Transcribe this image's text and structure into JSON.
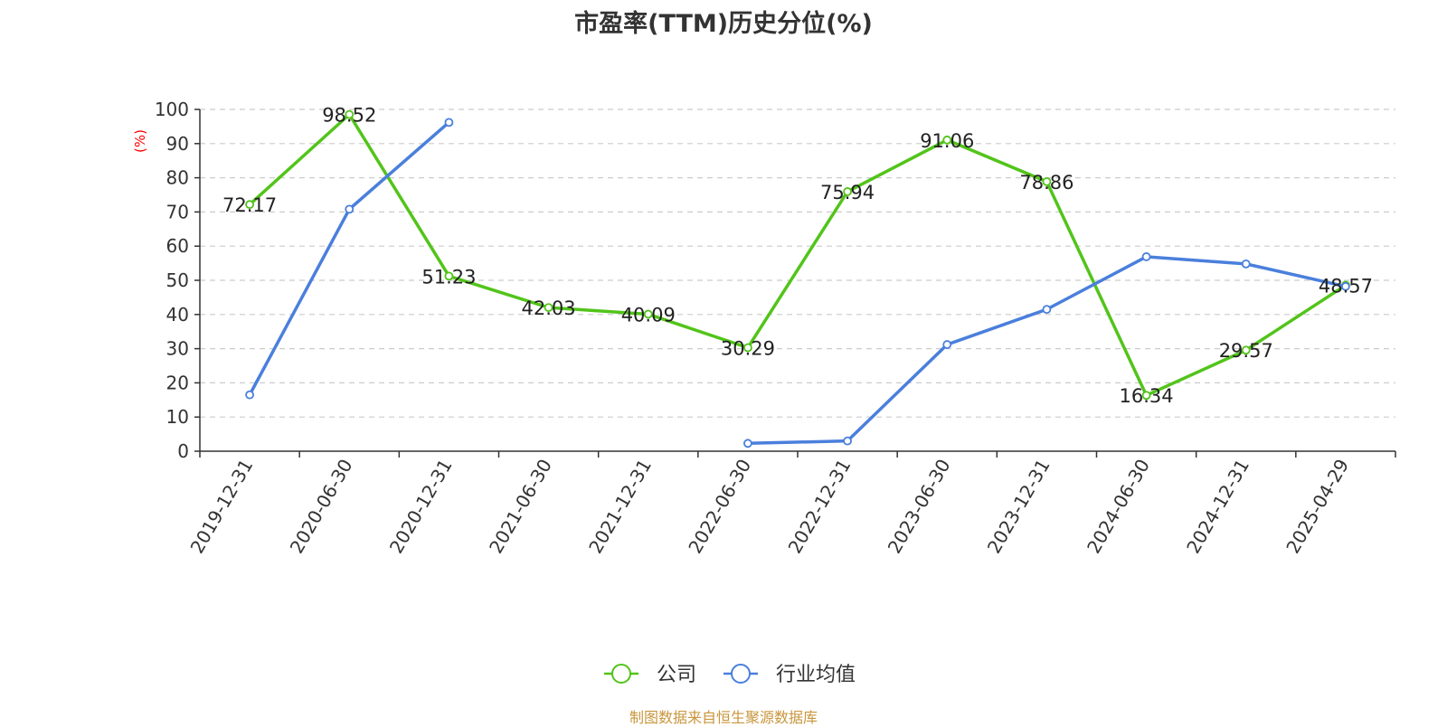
{
  "chart_data": {
    "type": "line",
    "title": "市盈率(TTM)历史分位(%)",
    "ylabel": "(%)",
    "xlabel": "",
    "ylim": [
      0,
      100
    ],
    "yticks": [
      0,
      10,
      20,
      30,
      40,
      50,
      60,
      70,
      80,
      90,
      100
    ],
    "grid": true,
    "legend_position": "bottom-center",
    "categories": [
      "2019-12-31",
      "2020-06-30",
      "2020-12-31",
      "2021-06-30",
      "2021-12-31",
      "2022-06-30",
      "2022-12-31",
      "2023-06-30",
      "2023-12-31",
      "2024-06-30",
      "2024-12-31",
      "2025-04-29"
    ],
    "series": [
      {
        "name": "公司",
        "color": "#52c41a",
        "show_labels": true,
        "values": [
          72.17,
          98.52,
          51.23,
          42.03,
          40.09,
          30.29,
          75.94,
          91.06,
          78.86,
          16.34,
          29.57,
          48.57
        ]
      },
      {
        "name": "行业均值",
        "color": "#4a7fdc",
        "show_labels": false,
        "values": [
          16.5,
          70.8,
          96.2,
          null,
          null,
          2.3,
          3.0,
          31.2,
          41.5,
          56.9,
          54.8,
          48.2
        ]
      }
    ]
  },
  "source": "制图数据来自恒生聚源数据库"
}
